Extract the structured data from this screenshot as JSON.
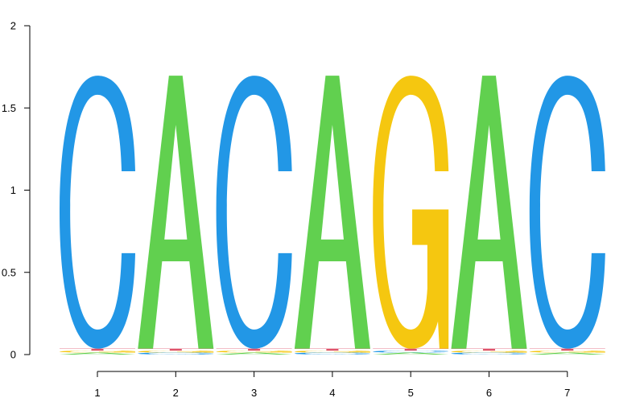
{
  "chart_data": {
    "type": "sequence-logo",
    "title": "",
    "xlabel": "",
    "ylabel": "",
    "ylim": [
      0,
      2
    ],
    "y_ticks": [
      "0",
      "0.5",
      "1",
      "1.5",
      "2"
    ],
    "y_tick_values": [
      0,
      0.5,
      1,
      1.5,
      2
    ],
    "positions": [
      "1",
      "2",
      "3",
      "4",
      "5",
      "6",
      "7"
    ],
    "consensus": [
      "C",
      "A",
      "C",
      "A",
      "G",
      "A",
      "C"
    ],
    "colors": {
      "A": "#61D04F",
      "C": "#2297E6",
      "G": "#F5C710",
      "T": "#DF536B"
    },
    "columns": [
      {
        "position": "1",
        "stack": [
          {
            "letter": "A",
            "height": 0.012
          },
          {
            "letter": "G",
            "height": 0.012
          },
          {
            "letter": "T",
            "height": 0.012
          },
          {
            "letter": "C",
            "height": 1.66
          }
        ]
      },
      {
        "position": "2",
        "stack": [
          {
            "letter": "C",
            "height": 0.012
          },
          {
            "letter": "G",
            "height": 0.012
          },
          {
            "letter": "T",
            "height": 0.012
          },
          {
            "letter": "A",
            "height": 1.66
          }
        ]
      },
      {
        "position": "3",
        "stack": [
          {
            "letter": "A",
            "height": 0.012
          },
          {
            "letter": "G",
            "height": 0.012
          },
          {
            "letter": "T",
            "height": 0.012
          },
          {
            "letter": "C",
            "height": 1.66
          }
        ]
      },
      {
        "position": "4",
        "stack": [
          {
            "letter": "C",
            "height": 0.012
          },
          {
            "letter": "G",
            "height": 0.012
          },
          {
            "letter": "T",
            "height": 0.012
          },
          {
            "letter": "A",
            "height": 1.66
          }
        ]
      },
      {
        "position": "5",
        "stack": [
          {
            "letter": "A",
            "height": 0.012
          },
          {
            "letter": "C",
            "height": 0.012
          },
          {
            "letter": "T",
            "height": 0.012
          },
          {
            "letter": "G",
            "height": 1.66
          }
        ]
      },
      {
        "position": "6",
        "stack": [
          {
            "letter": "C",
            "height": 0.012
          },
          {
            "letter": "G",
            "height": 0.012
          },
          {
            "letter": "T",
            "height": 0.012
          },
          {
            "letter": "A",
            "height": 1.66
          }
        ]
      },
      {
        "position": "7",
        "stack": [
          {
            "letter": "A",
            "height": 0.012
          },
          {
            "letter": "G",
            "height": 0.012
          },
          {
            "letter": "T",
            "height": 0.012
          },
          {
            "letter": "C",
            "height": 1.66
          }
        ]
      }
    ]
  }
}
